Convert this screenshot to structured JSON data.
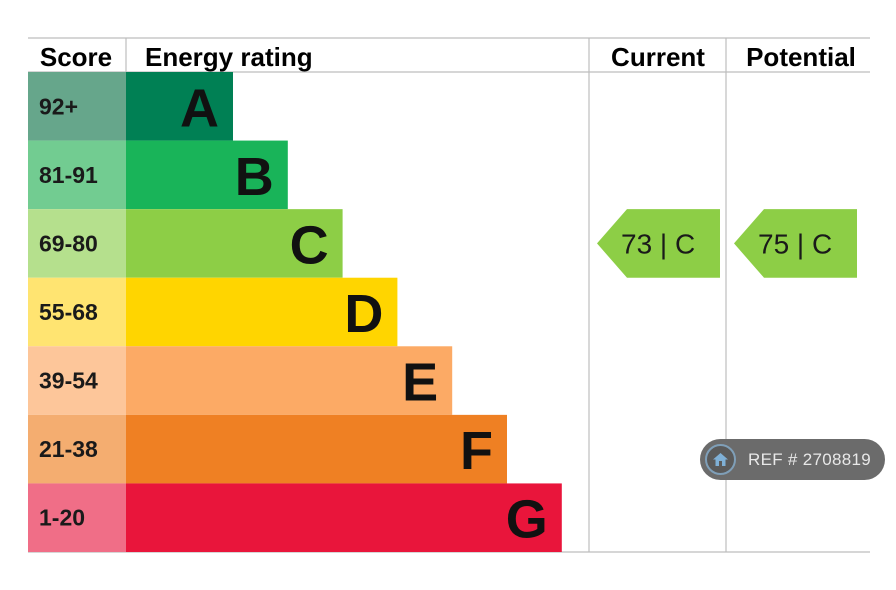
{
  "headers": {
    "score": "Score",
    "rating": "Energy rating",
    "current": "Current",
    "potential": "Potential"
  },
  "chart_data": {
    "type": "bar",
    "title": "",
    "bands": [
      {
        "score": "92+",
        "letter": "A",
        "color": "#008054",
        "score_color": "#66a68b"
      },
      {
        "score": "81-91",
        "letter": "B",
        "color": "#19b459",
        "score_color": "#72cc91"
      },
      {
        "score": "69-80",
        "letter": "C",
        "color": "#8dce46",
        "score_color": "#b5e08d"
      },
      {
        "score": "55-68",
        "letter": "D",
        "color": "#ffd500",
        "score_color": "#ffe471"
      },
      {
        "score": "39-54",
        "letter": "E",
        "color": "#fcaa65",
        "score_color": "#fdc69a"
      },
      {
        "score": "21-38",
        "letter": "F",
        "color": "#ef8023",
        "score_color": "#f4ad70"
      },
      {
        "score": "1-20",
        "letter": "G",
        "color": "#e9153b",
        "score_color": "#f06e87"
      }
    ],
    "current": {
      "value": 73,
      "band": "C",
      "label": "73 |  C",
      "color": "#8dce46"
    },
    "potential": {
      "value": 75,
      "band": "C",
      "label": "75 |  C",
      "color": "#8dce46"
    }
  },
  "reference": {
    "label": "REF # 2708819"
  }
}
